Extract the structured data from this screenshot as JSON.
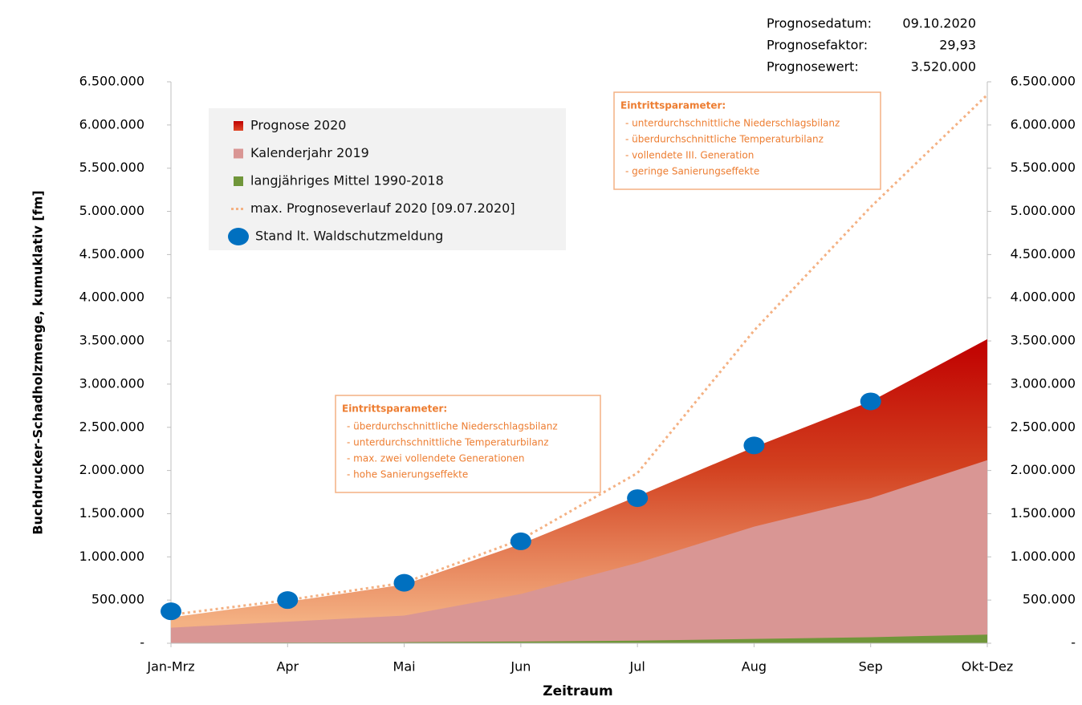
{
  "chart_data": {
    "type": "area",
    "y_label": "Buchdrucker-Schadholzmenge,  kumuklativ [fm]",
    "x_label": "Zeitraum",
    "categories": [
      "Jan-Mrz",
      "Apr",
      "Mai",
      "Jun",
      "Jul",
      "Aug",
      "Sep",
      "Okt-Dez"
    ],
    "series": [
      {
        "name": "Prognose 2020",
        "kind": "area",
        "color": "#c00000",
        "color_low": "#f4b183",
        "values": [
          300000,
          480000,
          680000,
          1150000,
          1700000,
          2270000,
          2800000,
          3520000
        ]
      },
      {
        "name": "Kalenderjahr 2019",
        "kind": "area",
        "color": "#d99694",
        "values": [
          180000,
          250000,
          320000,
          570000,
          930000,
          1350000,
          1680000,
          2120000
        ]
      },
      {
        "name": "langjähriges Mittel 1990-2018",
        "kind": "area",
        "color": "#70963a",
        "values": [
          5000,
          8000,
          12000,
          20000,
          30000,
          50000,
          70000,
          100000
        ]
      },
      {
        "name": "max. Prognoseverlauf 2020 [09.07.2020]",
        "kind": "line",
        "color": "#f4b183",
        "values": [
          330000,
          500000,
          700000,
          1200000,
          1970000,
          3620000,
          5050000,
          6350000
        ]
      },
      {
        "name": "Stand lt. Waldschutzmeldung",
        "kind": "scatter",
        "color": "#0070c0",
        "values": [
          370000,
          500000,
          700000,
          1180000,
          1680000,
          2290000,
          2800000,
          null
        ]
      }
    ],
    "ylim": [
      0,
      6500000
    ],
    "yticks": [
      {
        "value": 0,
        "label": "-"
      },
      {
        "value": 500000,
        "label": "500.000"
      },
      {
        "value": 1000000,
        "label": "1.000.000"
      },
      {
        "value": 1500000,
        "label": "1.500.000"
      },
      {
        "value": 2000000,
        "label": "2.000.000"
      },
      {
        "value": 2500000,
        "label": "2.500.000"
      },
      {
        "value": 3000000,
        "label": "3.000.000"
      },
      {
        "value": 3500000,
        "label": "3.500.000"
      },
      {
        "value": 4000000,
        "label": "4.000.000"
      },
      {
        "value": 4500000,
        "label": "4.500.000"
      },
      {
        "value": 5000000,
        "label": "5.000.000"
      },
      {
        "value": 5500000,
        "label": "5.500.000"
      },
      {
        "value": 6000000,
        "label": "6.000.000"
      },
      {
        "value": 6500000,
        "label": "6.500.000"
      }
    ],
    "y2lim": [
      0,
      6500000
    ],
    "y2ticks": [
      {
        "value": 0,
        "label": "-"
      },
      {
        "value": 500000,
        "label": "500.000"
      },
      {
        "value": 1000000,
        "label": "1.000.000"
      },
      {
        "value": 1500000,
        "label": "1.500.000"
      },
      {
        "value": 2000000,
        "label": "2.000.000"
      },
      {
        "value": 2500000,
        "label": "2.500.000"
      },
      {
        "value": 3000000,
        "label": "3.000.000"
      },
      {
        "value": 3500000,
        "label": "3.500.000"
      },
      {
        "value": 4000000,
        "label": "4.000.000"
      },
      {
        "value": 4500000,
        "label": "4.500.000"
      },
      {
        "value": 5000000,
        "label": "5.000.000"
      },
      {
        "value": 5500000,
        "label": "5.500.000"
      },
      {
        "value": 6000000,
        "label": "6.000.000"
      },
      {
        "value": 6500000,
        "label": "6.500.000"
      }
    ],
    "info": [
      {
        "label": "Prognosedatum:",
        "value": "09.10.2020"
      },
      {
        "label": "Prognosefaktor:",
        "value": "29,93"
      },
      {
        "label": "Prognosewert:",
        "value": "3.520.000"
      }
    ],
    "annotations": [
      {
        "title": "Eintrittsparameter:",
        "lines": [
          "- unterdurchschnittliche Niederschlagsbilanz",
          "- überdurchschnittliche Temperaturbilanz",
          "- vollendete III. Generation",
          "- geringe Sanierungseffekte"
        ]
      },
      {
        "title": "Eintrittsparameter:",
        "lines": [
          "- überdurchschnittliche Niederschlagsbilanz",
          "- unterdurchschnittliche Temperaturbilanz",
          "- max. zwei vollendete Generationen",
          "- hohe Sanierungseffekte"
        ]
      }
    ]
  }
}
